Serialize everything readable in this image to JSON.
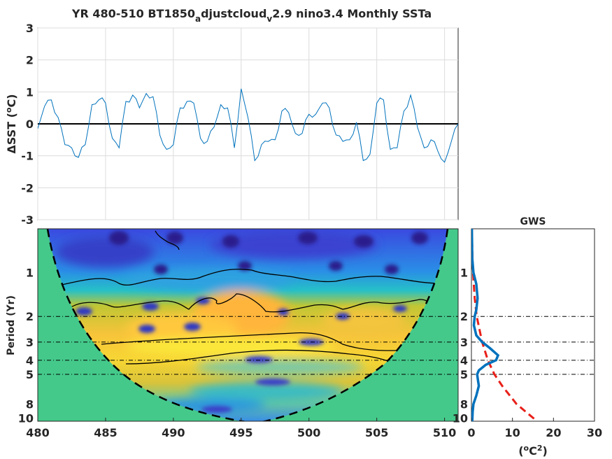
{
  "figure": {
    "title_main": "YR 480-510 BT1850",
    "title_sub1": "a",
    "title_mid": "djustcloud",
    "title_sub2": "v",
    "title_end": "2.9 nino3.4 Monthly SSTa"
  },
  "chart_data": [
    {
      "type": "line",
      "panel": "time-series",
      "ylabel_prefix": "ΔSST (",
      "ylabel_sup": "o",
      "ylabel_suffix": "C)",
      "xlim": [
        480,
        511
      ],
      "ylim": [
        -3,
        3
      ],
      "yticks": [
        3,
        2,
        1,
        0,
        -1,
        -2,
        -3
      ],
      "xgrid": [
        480,
        485,
        490,
        495,
        500,
        505,
        510
      ],
      "grid": true,
      "series_color": "#0072bd",
      "series": [
        {
          "values_x": [
            480,
            480.5,
            481,
            481.5,
            482,
            482.5,
            483,
            483.5,
            484,
            484.5,
            485,
            485.5,
            486,
            486.5,
            487,
            487.5,
            488,
            488.5,
            489,
            489.5,
            490,
            490.5,
            491,
            491.5,
            492,
            492.5,
            493,
            493.5,
            494,
            494.5,
            495,
            495.5,
            496,
            496.5,
            497,
            497.5,
            498,
            498.5,
            499,
            499.5,
            500,
            500.5,
            501,
            501.5,
            502,
            502.5,
            503,
            503.5,
            504,
            504.5,
            505,
            505.5,
            506,
            506.5,
            507,
            507.5,
            508,
            508.5,
            509,
            509.5,
            510,
            510.5,
            511
          ],
          "values_y": [
            -0.15,
            0.55,
            0.75,
            0.2,
            -0.65,
            -0.75,
            -1.05,
            -0.65,
            0.6,
            0.75,
            0.65,
            -0.45,
            -0.75,
            0.7,
            0.9,
            0.5,
            0.95,
            0.85,
            -0.35,
            -0.8,
            -0.65,
            0.5,
            0.7,
            0.65,
            -0.45,
            -0.55,
            -0.1,
            0.6,
            0.5,
            -0.75,
            1.1,
            0.2,
            -1.15,
            -0.65,
            -0.55,
            -0.5,
            0.4,
            0.35,
            -0.3,
            -0.3,
            0.3,
            0.3,
            0.65,
            0.5,
            -0.35,
            -0.55,
            -0.5,
            0.05,
            -1.15,
            -0.95,
            0.65,
            0.75,
            -0.8,
            -0.75,
            0.4,
            0.9,
            -0.1,
            -0.75,
            -0.5,
            -0.85,
            -1.2,
            -0.55,
            0.0
          ]
        }
      ]
    },
    {
      "type": "heatmap",
      "panel": "wavelet-power",
      "ylabel": "Period (Yr)",
      "xlim": [
        480,
        511
      ],
      "xticks": [
        480,
        485,
        490,
        495,
        500,
        505,
        510
      ],
      "y_scale": "log",
      "ylim": [
        0.5,
        10.5
      ],
      "yticks": [
        1,
        2,
        3,
        4,
        5,
        8,
        10
      ],
      "colormap": "parula",
      "coi_color": "#44c98a"
    },
    {
      "type": "line",
      "panel": "global-wavelet-spectrum",
      "title": "GWS",
      "xlabel_prefix": "(",
      "xlabel_sup1": "o",
      "xlabel_mid": "C",
      "xlabel_sup2": "2",
      "xlabel_suffix": ")",
      "xlim": [
        0,
        30
      ],
      "xticks": [
        0,
        10,
        20,
        30
      ],
      "yticks": [
        1,
        2,
        3,
        4,
        5,
        8,
        10
      ],
      "reference_periods": [
        2,
        3,
        4,
        5
      ],
      "series": [
        {
          "style": "solid",
          "color": "#0072bd",
          "period": [
            0.5,
            0.8,
            1.0,
            1.2,
            1.5,
            1.8,
            2.0,
            2.3,
            2.7,
            3.0,
            3.3,
            3.7,
            4.0,
            4.3,
            4.7,
            5.0,
            5.5,
            6.0,
            7.0,
            8.0,
            9.0,
            10.5
          ],
          "power": [
            0.1,
            0.2,
            0.5,
            1.2,
            1.5,
            1.2,
            0.8,
            0.6,
            1.2,
            2.6,
            4.5,
            6.5,
            6.0,
            3.5,
            1.8,
            1.4,
            1.6,
            1.8,
            1.2,
            0.5,
            0.3,
            0.2
          ]
        },
        {
          "style": "dashed",
          "color": "#e8201a",
          "period": [
            0.5,
            0.8,
            1.0,
            1.5,
            2.0,
            3.0,
            4.0,
            5.0,
            6.0,
            8.0,
            10.5
          ],
          "power": [
            0.1,
            0.25,
            0.4,
            0.8,
            1.3,
            2.6,
            4.0,
            5.6,
            7.5,
            11.0,
            16.0
          ]
        }
      ]
    }
  ]
}
